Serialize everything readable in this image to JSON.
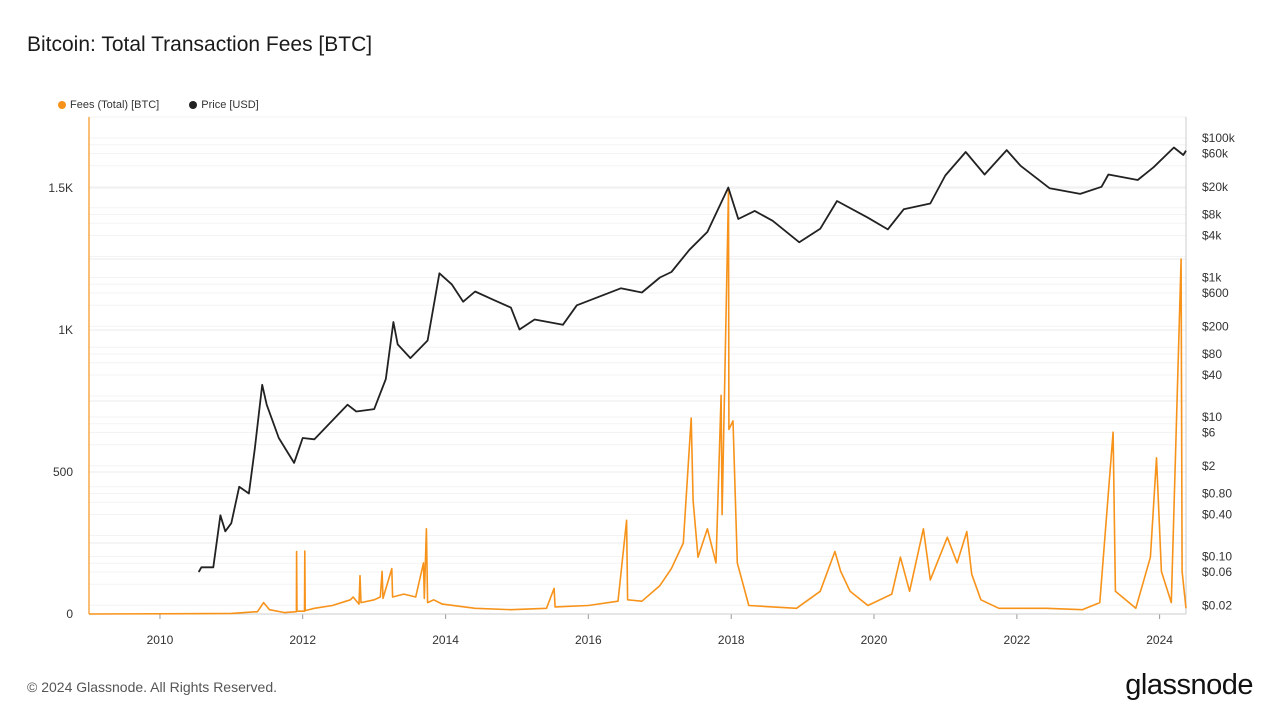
{
  "title": "Bitcoin: Total Transaction Fees [BTC]",
  "footer": "© 2024 Glassnode. All Rights Reserved.",
  "brand": "glassnode",
  "colors": {
    "fees": "#f7931a",
    "price": "#222222",
    "grid": "#ebebeb",
    "axis": "#f7931a"
  },
  "legend": [
    {
      "label": "Fees (Total) [BTC]",
      "color": "#f7931a"
    },
    {
      "label": "Price [USD]",
      "color": "#222222"
    }
  ],
  "chart_data": {
    "type": "line",
    "x_range": [
      "2009-01-03",
      "2024-05-15"
    ],
    "x_ticks": [
      "2010",
      "2012",
      "2014",
      "2016",
      "2018",
      "2020",
      "2022",
      "2024"
    ],
    "left_axis": {
      "ticks": [
        0,
        500,
        1000,
        1500
      ],
      "tick_labels": [
        "0",
        "500",
        "1K",
        "1.5K"
      ],
      "range": [
        0,
        1750
      ]
    },
    "right_axis": {
      "scale": "log",
      "range": [
        0.015,
        200000
      ],
      "ticks": [
        0.02,
        0.06,
        0.1,
        0.4,
        0.8,
        2,
        6,
        10,
        40,
        80,
        200,
        600,
        1000,
        4000,
        8000,
        20000,
        60000,
        100000
      ],
      "tick_labels": [
        "$0.02",
        "$0.06",
        "$0.10",
        "$0.40",
        "$0.80",
        "$2",
        "$6",
        "$10",
        "$40",
        "$80",
        "$200",
        "$600",
        "$1k",
        "$4k",
        "$8k",
        "$20k",
        "$60k",
        "$100k"
      ]
    },
    "grid": true,
    "legend_position": "top-left",
    "series": [
      {
        "name": "Fees (Total) [BTC]",
        "axis": "left",
        "points": [
          [
            "2009-01-03",
            0
          ],
          [
            "2010-06-01",
            1
          ],
          [
            "2011-01-01",
            2
          ],
          [
            "2011-05-15",
            8
          ],
          [
            "2011-06-15",
            40
          ],
          [
            "2011-07-15",
            15
          ],
          [
            "2011-10-01",
            5
          ],
          [
            "2011-11-30",
            8
          ],
          [
            "2011-12-01",
            220
          ],
          [
            "2011-12-03",
            10
          ],
          [
            "2012-01-10",
            10
          ],
          [
            "2012-01-12",
            222
          ],
          [
            "2012-01-14",
            12
          ],
          [
            "2012-03-01",
            20
          ],
          [
            "2012-06-01",
            30
          ],
          [
            "2012-09-01",
            50
          ],
          [
            "2012-09-15",
            60
          ],
          [
            "2012-10-15",
            35
          ],
          [
            "2012-10-20",
            135
          ],
          [
            "2012-10-25",
            40
          ],
          [
            "2013-01-01",
            50
          ],
          [
            "2013-02-01",
            60
          ],
          [
            "2013-02-10",
            150
          ],
          [
            "2013-02-15",
            55
          ],
          [
            "2013-04-01",
            160
          ],
          [
            "2013-04-05",
            60
          ],
          [
            "2013-06-01",
            70
          ],
          [
            "2013-08-01",
            60
          ],
          [
            "2013-09-10",
            180
          ],
          [
            "2013-09-14",
            55
          ],
          [
            "2013-09-25",
            300
          ],
          [
            "2013-10-01",
            40
          ],
          [
            "2013-11-01",
            50
          ],
          [
            "2013-12-15",
            35
          ],
          [
            "2014-06-01",
            20
          ],
          [
            "2014-12-01",
            15
          ],
          [
            "2015-06-01",
            20
          ],
          [
            "2015-07-10",
            90
          ],
          [
            "2015-07-15",
            25
          ],
          [
            "2016-01-01",
            30
          ],
          [
            "2016-06-01",
            45
          ],
          [
            "2016-07-15",
            330
          ],
          [
            "2016-07-20",
            50
          ],
          [
            "2016-10-01",
            45
          ],
          [
            "2017-01-01",
            100
          ],
          [
            "2017-03-01",
            160
          ],
          [
            "2017-05-01",
            250
          ],
          [
            "2017-06-10",
            690
          ],
          [
            "2017-06-20",
            400
          ],
          [
            "2017-07-15",
            200
          ],
          [
            "2017-09-01",
            300
          ],
          [
            "2017-10-15",
            180
          ],
          [
            "2017-11-10",
            770
          ],
          [
            "2017-11-15",
            350
          ],
          [
            "2017-12-18",
            1490
          ],
          [
            "2017-12-20",
            650
          ],
          [
            "2018-01-10",
            680
          ],
          [
            "2018-02-01",
            180
          ],
          [
            "2018-04-01",
            30
          ],
          [
            "2018-12-01",
            20
          ],
          [
            "2019-04-01",
            80
          ],
          [
            "2019-06-15",
            220
          ],
          [
            "2019-07-15",
            150
          ],
          [
            "2019-09-01",
            80
          ],
          [
            "2019-12-01",
            30
          ],
          [
            "2020-04-01",
            70
          ],
          [
            "2020-05-15",
            200
          ],
          [
            "2020-07-01",
            80
          ],
          [
            "2020-09-10",
            300
          ],
          [
            "2020-10-15",
            120
          ],
          [
            "2021-01-10",
            270
          ],
          [
            "2021-03-01",
            180
          ],
          [
            "2021-04-20",
            290
          ],
          [
            "2021-05-15",
            140
          ],
          [
            "2021-07-01",
            50
          ],
          [
            "2021-10-01",
            20
          ],
          [
            "2022-06-01",
            20
          ],
          [
            "2022-12-01",
            15
          ],
          [
            "2023-03-01",
            40
          ],
          [
            "2023-05-08",
            640
          ],
          [
            "2023-05-20",
            80
          ],
          [
            "2023-09-01",
            20
          ],
          [
            "2023-11-15",
            200
          ],
          [
            "2023-12-16",
            550
          ],
          [
            "2024-01-10",
            150
          ],
          [
            "2024-03-01",
            40
          ],
          [
            "2024-04-20",
            1250
          ],
          [
            "2024-04-25",
            150
          ],
          [
            "2024-05-15",
            20
          ]
        ]
      },
      {
        "name": "Price [USD]",
        "axis": "right",
        "points": [
          [
            "2010-07-18",
            0.06
          ],
          [
            "2010-08-01",
            0.07
          ],
          [
            "2010-10-01",
            0.07
          ],
          [
            "2010-11-06",
            0.39
          ],
          [
            "2010-12-01",
            0.23
          ],
          [
            "2011-01-01",
            0.3
          ],
          [
            "2011-02-10",
            1.0
          ],
          [
            "2011-04-01",
            0.8
          ],
          [
            "2011-05-01",
            3.5
          ],
          [
            "2011-06-08",
            29
          ],
          [
            "2011-07-01",
            15
          ],
          [
            "2011-09-01",
            5
          ],
          [
            "2011-11-18",
            2.2
          ],
          [
            "2012-01-01",
            5
          ],
          [
            "2012-03-01",
            4.8
          ],
          [
            "2012-08-17",
            15
          ],
          [
            "2012-10-01",
            12
          ],
          [
            "2013-01-01",
            13
          ],
          [
            "2013-03-01",
            35
          ],
          [
            "2013-04-09",
            230
          ],
          [
            "2013-05-01",
            110
          ],
          [
            "2013-07-05",
            70
          ],
          [
            "2013-10-01",
            125
          ],
          [
            "2013-11-30",
            1150
          ],
          [
            "2014-02-01",
            800
          ],
          [
            "2014-04-01",
            450
          ],
          [
            "2014-06-01",
            630
          ],
          [
            "2014-09-01",
            480
          ],
          [
            "2014-12-01",
            370
          ],
          [
            "2015-01-14",
            180
          ],
          [
            "2015-04-01",
            250
          ],
          [
            "2015-08-24",
            210
          ],
          [
            "2015-11-03",
            400
          ],
          [
            "2016-06-15",
            700
          ],
          [
            "2016-10-01",
            610
          ],
          [
            "2017-01-01",
            1000
          ],
          [
            "2017-03-01",
            1200
          ],
          [
            "2017-06-01",
            2500
          ],
          [
            "2017-09-01",
            4500
          ],
          [
            "2017-12-17",
            19500
          ],
          [
            "2018-02-06",
            6900
          ],
          [
            "2018-05-01",
            9000
          ],
          [
            "2018-08-01",
            6500
          ],
          [
            "2018-12-15",
            3200
          ],
          [
            "2019-04-01",
            5000
          ],
          [
            "2019-06-26",
            12500
          ],
          [
            "2019-12-01",
            7200
          ],
          [
            "2020-03-12",
            4900
          ],
          [
            "2020-06-01",
            9500
          ],
          [
            "2020-10-15",
            11500
          ],
          [
            "2020-12-31",
            29000
          ],
          [
            "2021-04-14",
            63000
          ],
          [
            "2021-07-20",
            30000
          ],
          [
            "2021-11-10",
            67000
          ],
          [
            "2022-01-20",
            40000
          ],
          [
            "2022-06-18",
            19000
          ],
          [
            "2022-11-21",
            15800
          ],
          [
            "2023-03-10",
            20000
          ],
          [
            "2023-04-14",
            30000
          ],
          [
            "2023-09-11",
            25000
          ],
          [
            "2023-12-01",
            38000
          ],
          [
            "2024-03-14",
            73000
          ],
          [
            "2024-05-01",
            57000
          ],
          [
            "2024-05-15",
            66000
          ]
        ]
      }
    ]
  }
}
